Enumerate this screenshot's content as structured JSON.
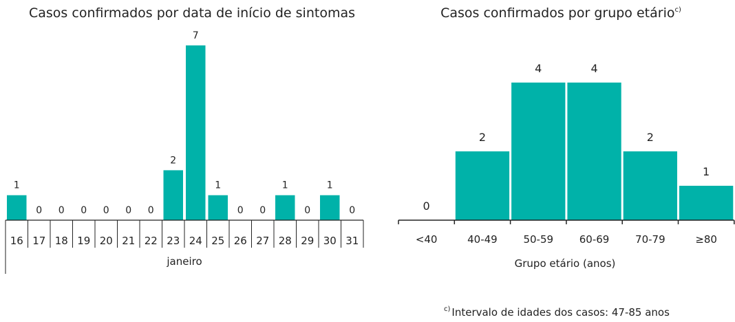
{
  "colors": {
    "bar": "#00b2a9",
    "axis": "#222222"
  },
  "chart_data": [
    {
      "type": "bar",
      "title": "Casos confirmados por data de início de sintomas",
      "xlabel": "janeiro",
      "ylabel": "",
      "categories": [
        "16",
        "17",
        "18",
        "19",
        "20",
        "21",
        "22",
        "23",
        "24",
        "25",
        "26",
        "27",
        "28",
        "29",
        "30",
        "31"
      ],
      "values": [
        1,
        0,
        0,
        0,
        0,
        0,
        0,
        2,
        7,
        1,
        0,
        0,
        1,
        0,
        1,
        0
      ],
      "ylim": [
        0,
        7
      ],
      "grid": false
    },
    {
      "type": "bar",
      "title": "Casos confirmados por grupo etário",
      "title_sup": "c)",
      "xlabel": "Grupo etário (anos)",
      "ylabel": "",
      "categories": [
        "<40",
        "40-49",
        "50-59",
        "60-69",
        "70-79",
        "≥80"
      ],
      "values": [
        0,
        2,
        4,
        4,
        2,
        1
      ],
      "ylim": [
        0,
        4
      ],
      "grid": false
    }
  ],
  "footnote": {
    "sup": "c)",
    "text": "Intervalo de idades dos casos: 47-85 anos"
  }
}
